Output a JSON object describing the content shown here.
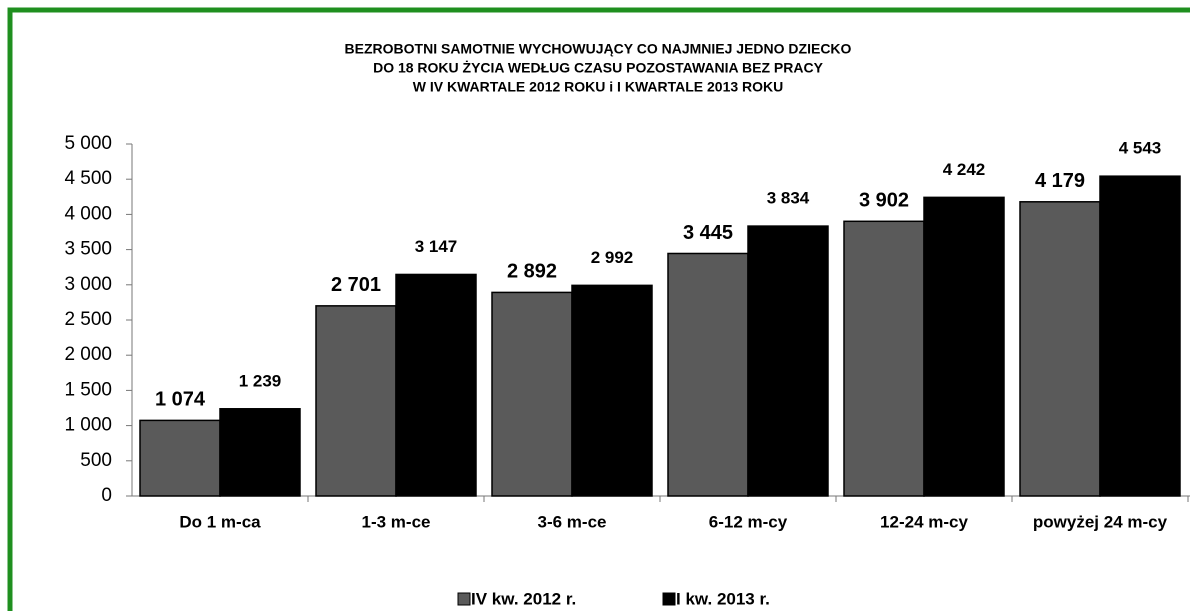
{
  "chart_data": {
    "type": "bar",
    "title": [
      "BEZROBOTNI SAMOTNIE WYCHOWUJĄCY CO NAJMNIEJ JEDNO DZIECKO",
      "DO 18 ROKU ŻYCIA WEDŁUG  CZASU POZOSTAWANIA BEZ PRACY",
      "W  IV KWARTALE 2012 ROKU i I KWARTALE 2013 ROKU"
    ],
    "categories": [
      "Do 1 m-ca",
      "1-3 m-ce",
      "3-6 m-ce",
      "6-12 m-cy",
      "12-24 m-cy",
      "powyżej 24 m-cy"
    ],
    "series": [
      {
        "name": "IV kw. 2012 r.",
        "color": "#5a5a5a",
        "values": [
          1074,
          2701,
          2892,
          3445,
          3902,
          4179
        ],
        "value_labels": [
          "1 074",
          "2 701",
          "2 892",
          "3 445",
          "3 902",
          "4 179"
        ]
      },
      {
        "name": "I kw. 2013 r.",
        "color": "#000000",
        "values": [
          1239,
          3147,
          2992,
          3834,
          4242,
          4543
        ],
        "value_labels": [
          "1 239",
          "3 147",
          "2 992",
          "3 834",
          "4 242",
          "4 543"
        ]
      }
    ],
    "ylim": [
      0,
      5000
    ],
    "yticks": [
      0,
      500,
      {
        "value": 1000,
        "label": "1 000"
      },
      {
        "value": 1500,
        "label": "1 500"
      },
      {
        "value": 2000,
        "label": "2 000"
      },
      {
        "value": 2500,
        "label": "2 500"
      },
      {
        "value": 3000,
        "label": "3 000"
      },
      {
        "value": 3500,
        "label": "3 500"
      },
      {
        "value": 4000,
        "label": "4 000"
      },
      {
        "value": 4500,
        "label": "4 500"
      },
      {
        "value": 5000,
        "label": "5 000"
      }
    ],
    "legend": "bottom"
  }
}
